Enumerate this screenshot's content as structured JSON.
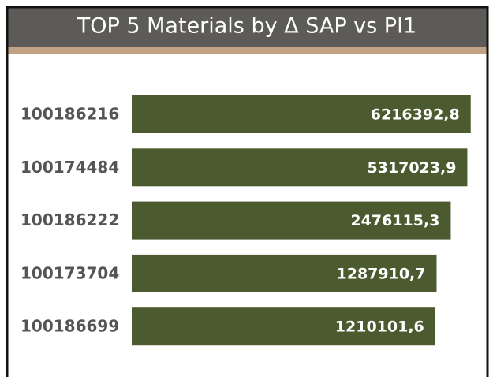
{
  "chart_data": {
    "type": "bar",
    "orientation": "horizontal",
    "title": "TOP 5 Materials by Δ SAP vs PI1",
    "categories": [
      "100186216",
      "100174484",
      "100186222",
      "100173704",
      "100186699"
    ],
    "values": [
      6216392.8,
      5317023.9,
      2476115.3,
      1287910.7,
      1210101.6
    ],
    "value_labels": [
      "6216392,8",
      "5317023,9",
      "2476115,3",
      "1287910,7",
      "1210101,6"
    ],
    "color": "#4b5a2f",
    "xscale": "log",
    "xlim": [
      1,
      7000000
    ]
  }
}
